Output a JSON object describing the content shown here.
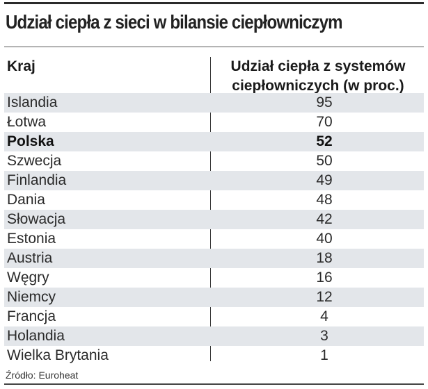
{
  "title": "Udział ciepła z sieci w bilansie ciepłowniczym",
  "source": "Źródło: Euroheat",
  "chart_data": {
    "type": "table",
    "columns": [
      "Kraj",
      "Udział ciepła z systemów ciepłowniczych (w proc.)"
    ],
    "rows": [
      {
        "country": "Islandia",
        "value": "95"
      },
      {
        "country": "Łotwa",
        "value": "70"
      },
      {
        "country": "Polska",
        "value": "52",
        "highlight": true
      },
      {
        "country": "Szwecja",
        "value": "50"
      },
      {
        "country": "Finlandia",
        "value": "49"
      },
      {
        "country": "Dania",
        "value": "48"
      },
      {
        "country": "Słowacja",
        "value": "42"
      },
      {
        "country": "Estonia",
        "value": "40"
      },
      {
        "country": "Austria",
        "value": "18"
      },
      {
        "country": "Węgry",
        "value": "16"
      },
      {
        "country": "Niemcy",
        "value": "12"
      },
      {
        "country": "Francja",
        "value": "4"
      },
      {
        "country": "Holandia",
        "value": "3"
      },
      {
        "country": "Wielka Brytania",
        "value": "1"
      }
    ]
  }
}
